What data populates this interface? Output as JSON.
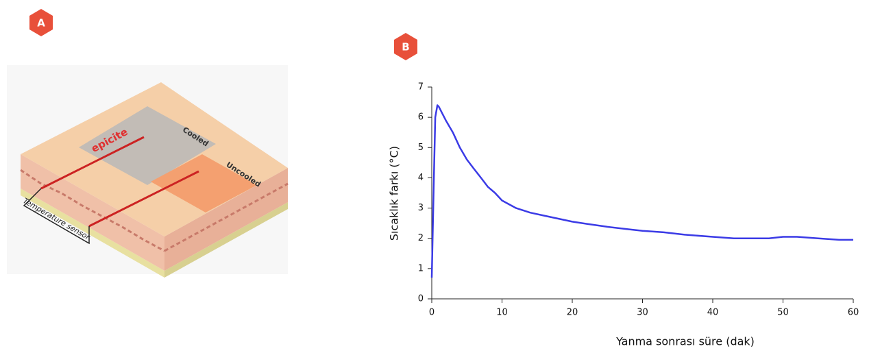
{
  "panels": [
    "A",
    "B"
  ],
  "illustration": {
    "brand": "epicite",
    "patch_cooled": "Cooled",
    "patch_uncooled": "Uncooled",
    "sensor_label": "Temperature sensor"
  },
  "chart_data": {
    "type": "line",
    "xlabel": "Yanma sonrası süre (dak)",
    "ylabel": "Sıcaklık farkı (°C)",
    "x": [
      0,
      0.3,
      0.5,
      0.8,
      1,
      2,
      3,
      4,
      5,
      6,
      7,
      8,
      9,
      10,
      12,
      14,
      16,
      18,
      20,
      22,
      25,
      28,
      30,
      33,
      36,
      40,
      43,
      45,
      48,
      50,
      52,
      55,
      58,
      60
    ],
    "values": [
      0.7,
      4,
      6,
      6.4,
      6.35,
      5.9,
      5.5,
      5.0,
      4.6,
      4.3,
      4.0,
      3.7,
      3.5,
      3.25,
      3.0,
      2.85,
      2.75,
      2.65,
      2.55,
      2.48,
      2.38,
      2.3,
      2.25,
      2.2,
      2.12,
      2.05,
      2.0,
      2.0,
      2.0,
      2.05,
      2.05,
      2.0,
      1.95,
      1.95
    ],
    "color": "#3b3be6",
    "xlim": [
      0,
      60
    ],
    "xticks": [
      0,
      10,
      20,
      30,
      40,
      50,
      60
    ],
    "ylim": [
      0,
      7
    ],
    "yticks": [
      0,
      1,
      2,
      3,
      4,
      5,
      6,
      7
    ]
  }
}
